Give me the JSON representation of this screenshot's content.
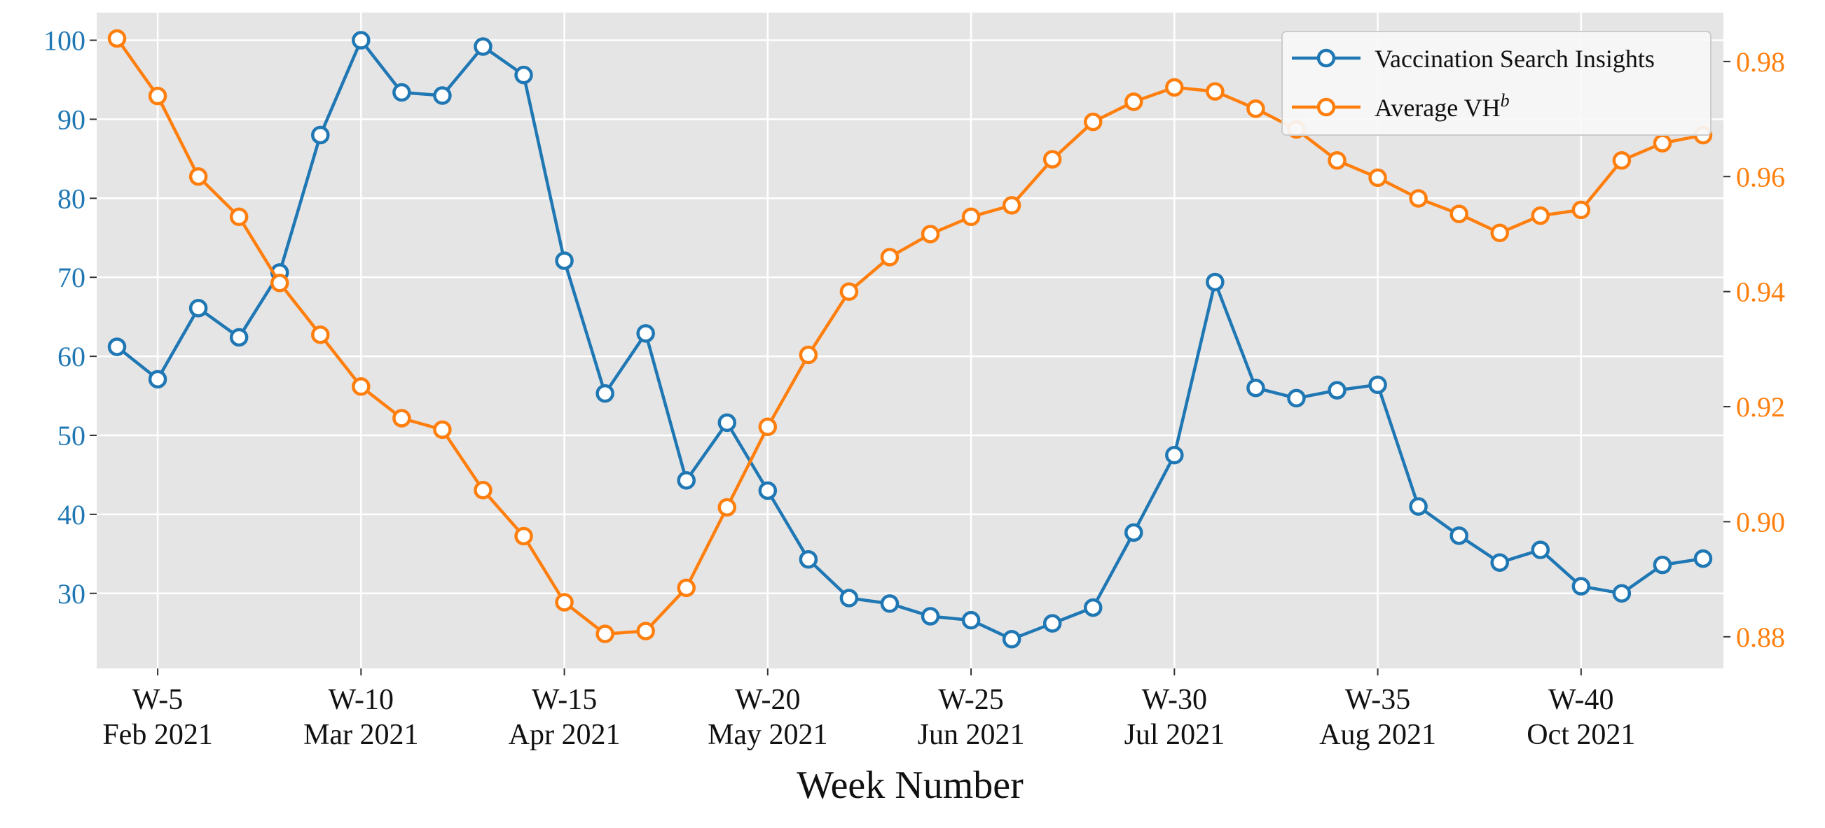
{
  "chart_data": {
    "type": "line",
    "xlabel": "Week Number",
    "xlim": [
      3.5,
      43.5
    ],
    "x_ticks": [
      {
        "week": 5,
        "label": "W-5",
        "sublabel": "Feb 2021"
      },
      {
        "week": 10,
        "label": "W-10",
        "sublabel": "Mar 2021"
      },
      {
        "week": 15,
        "label": "W-15",
        "sublabel": "Apr 2021"
      },
      {
        "week": 20,
        "label": "W-20",
        "sublabel": "May 2021"
      },
      {
        "week": 25,
        "label": "W-25",
        "sublabel": "Jun 2021"
      },
      {
        "week": 30,
        "label": "W-30",
        "sublabel": "Jul 2021"
      },
      {
        "week": 35,
        "label": "W-35",
        "sublabel": "Aug 2021"
      },
      {
        "week": 40,
        "label": "W-40",
        "sublabel": "Oct 2021"
      }
    ],
    "y_left": {
      "ylim": [
        20.5,
        103.5
      ],
      "ticks": [
        30,
        40,
        50,
        60,
        70,
        80,
        90,
        100
      ],
      "color": "#1f77b4"
    },
    "y_right": {
      "ylim": [
        0.8745,
        0.9885
      ],
      "ticks": [
        "0.88",
        "0.90",
        "0.92",
        "0.94",
        "0.96",
        "0.98"
      ],
      "color": "#ff7f0e"
    },
    "grid": true,
    "background": "#e5e5e5",
    "legend_position": "top-right",
    "x": [
      4,
      5,
      6,
      7,
      8,
      9,
      10,
      11,
      12,
      13,
      14,
      15,
      16,
      17,
      18,
      19,
      20,
      21,
      22,
      23,
      24,
      25,
      26,
      27,
      28,
      29,
      30,
      31,
      32,
      33,
      34,
      35,
      36,
      37,
      38,
      39,
      40,
      41,
      42,
      43
    ],
    "series": [
      {
        "name": "Vaccination Search Insights",
        "axis": "left",
        "color": "#1f77b4",
        "values": [
          61.2,
          57.1,
          66.1,
          62.4,
          70.6,
          88.0,
          100.0,
          93.4,
          93.0,
          99.2,
          95.6,
          72.1,
          55.3,
          62.9,
          44.3,
          51.6,
          43.0,
          34.3,
          29.4,
          28.7,
          27.1,
          26.6,
          24.2,
          26.2,
          28.2,
          37.7,
          47.5,
          69.4,
          56.0,
          54.7,
          55.7,
          56.4,
          41.0,
          37.3,
          33.9,
          35.5,
          30.9,
          30.0,
          33.6,
          34.4
        ]
      },
      {
        "name": "Average VH",
        "name_superscript": "b",
        "axis": "right",
        "color": "#ff7f0e",
        "values": [
          0.984,
          0.974,
          0.96,
          0.953,
          0.9415,
          0.9325,
          0.9235,
          0.918,
          0.916,
          0.9055,
          0.8975,
          0.886,
          0.8805,
          0.881,
          0.8885,
          0.9025,
          0.9165,
          0.929,
          0.94,
          0.946,
          0.95,
          0.953,
          0.955,
          0.963,
          0.9695,
          0.973,
          0.9755,
          0.9748,
          0.9718,
          0.9682,
          0.9628,
          0.9598,
          0.9562,
          0.9535,
          0.9502,
          0.9532,
          0.9542,
          0.9628,
          0.9658,
          0.9672
        ]
      }
    ]
  }
}
